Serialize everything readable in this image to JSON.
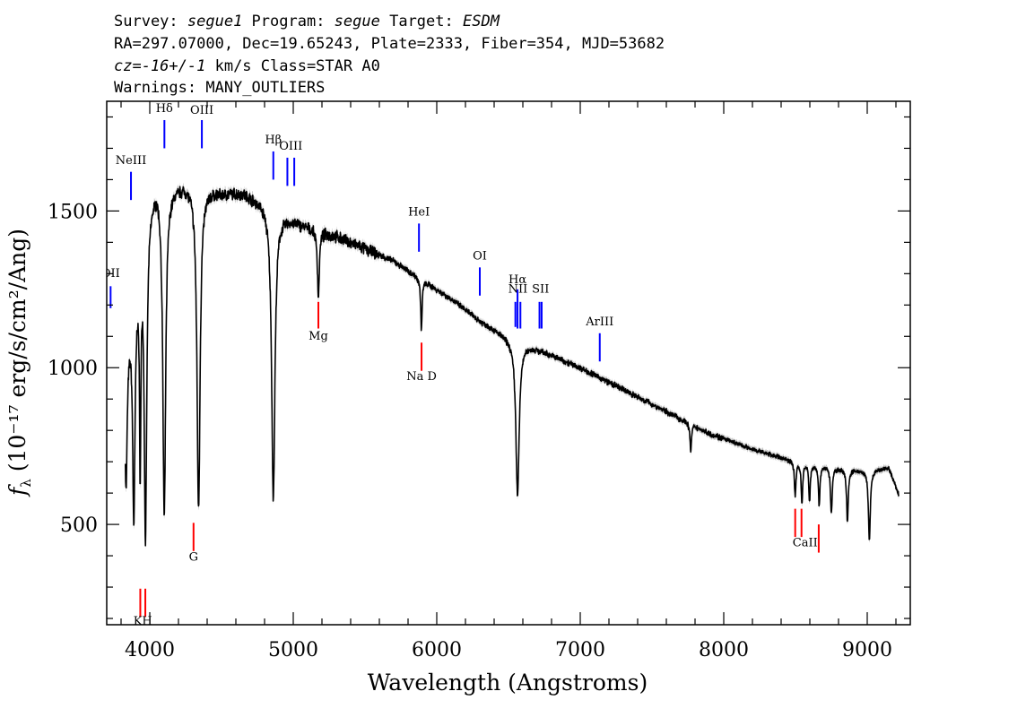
{
  "header": {
    "line1": [
      {
        "text": "Survey: ",
        "italic": false
      },
      {
        "text": "segue1",
        "italic": true
      },
      {
        "text": " Program: ",
        "italic": false
      },
      {
        "text": "segue",
        "italic": true
      },
      {
        "text": " Target: ",
        "italic": false
      },
      {
        "text": "ESDM",
        "italic": true
      }
    ],
    "line2": "RA=297.07000, Dec=19.65243, Plate=2333, Fiber=354, MJD=53682",
    "line3": [
      {
        "text": "cz=-16+/-1",
        "italic": true
      },
      {
        "text": " km/s Class=STAR A0",
        "italic": false
      }
    ],
    "line4": "Warnings: MANY_OUTLIERS"
  },
  "chart_data": {
    "type": "line",
    "xlabel": "Wavelength (Angstroms)",
    "ylabel": "fλ (10⁻¹⁷ erg/s/cm²/Ang)",
    "xlim": [
      3700,
      9300
    ],
    "ylim": [
      180,
      1850
    ],
    "xticks": [
      4000,
      5000,
      6000,
      7000,
      8000,
      9000
    ],
    "yticks": [
      500,
      1000,
      1500
    ],
    "spectrum_color": "#000000",
    "error_color": "#b0b0b0",
    "emission_color": "#0000ff",
    "absorption_color": "#ff0000",
    "continuum": [
      [
        3830,
        1060
      ],
      [
        3900,
        1280
      ],
      [
        3960,
        1520
      ],
      [
        4050,
        1600
      ],
      [
        4150,
        1580
      ],
      [
        4250,
        1590
      ],
      [
        4350,
        1580
      ],
      [
        4500,
        1560
      ],
      [
        4650,
        1560
      ],
      [
        4800,
        1525
      ],
      [
        4950,
        1480
      ],
      [
        5100,
        1450
      ],
      [
        5300,
        1420
      ],
      [
        5500,
        1380
      ],
      [
        5700,
        1340
      ],
      [
        5900,
        1280
      ],
      [
        6100,
        1220
      ],
      [
        6300,
        1150
      ],
      [
        6500,
        1095
      ],
      [
        6700,
        1060
      ],
      [
        7000,
        1000
      ],
      [
        7300,
        930
      ],
      [
        7600,
        860
      ],
      [
        7900,
        790
      ],
      [
        8200,
        740
      ],
      [
        8500,
        700
      ],
      [
        8800,
        680
      ],
      [
        9000,
        670
      ],
      [
        9150,
        680
      ],
      [
        9220,
        595
      ]
    ],
    "absorption_features": [
      {
        "x": 3835,
        "depth": 430,
        "width": 9
      },
      {
        "x": 3889,
        "depth": 700,
        "width": 10
      },
      {
        "x": 3933,
        "depth": 650,
        "width": 6
      },
      {
        "x": 3970,
        "depth": 1050,
        "width": 11
      },
      {
        "x": 4101,
        "depth": 1060,
        "width": 12
      },
      {
        "x": 4340,
        "depth": 1030,
        "width": 13
      },
      {
        "x": 4861,
        "depth": 920,
        "width": 14
      },
      {
        "x": 5175,
        "depth": 210,
        "width": 8
      },
      {
        "x": 5893,
        "depth": 160,
        "width": 6
      },
      {
        "x": 6563,
        "depth": 490,
        "width": 14
      },
      {
        "x": 7770,
        "depth": 90,
        "width": 6
      },
      {
        "x": 8498,
        "depth": 110,
        "width": 6
      },
      {
        "x": 8545,
        "depth": 130,
        "width": 6
      },
      {
        "x": 8598,
        "depth": 120,
        "width": 6
      },
      {
        "x": 8665,
        "depth": 130,
        "width": 6
      },
      {
        "x": 8750,
        "depth": 150,
        "width": 7
      },
      {
        "x": 8862,
        "depth": 170,
        "width": 7
      },
      {
        "x": 9015,
        "depth": 220,
        "width": 8
      }
    ],
    "emission_lines": [
      {
        "label": "OII",
        "x": 3727,
        "y_bottom": 1190,
        "y_top": 1260,
        "label_y": 1290
      },
      {
        "label": "NeIII",
        "x": 3869,
        "y_bottom": 1535,
        "y_top": 1625,
        "label_y": 1650
      },
      {
        "label": "Hδ",
        "x": 4102,
        "y_bottom": 1700,
        "y_top": 1790,
        "label_y": 1815
      },
      {
        "label": "OIII",
        "x": 4363,
        "y_bottom": 1700,
        "y_top": 1790,
        "label_y": 1810
      },
      {
        "label": "Hβ",
        "x": 4861,
        "y_bottom": 1600,
        "y_top": 1690,
        "label_y": 1715
      },
      {
        "label": "OIII",
        "x": 4959,
        "y_bottom": 1580,
        "y_top": 1670,
        "label_y": 1695
      },
      {
        "label": "OIII",
        "x": 5007,
        "y_bottom": 1580,
        "y_top": 1670,
        "label_y": 1695
      },
      {
        "label": "HeI",
        "x": 5876,
        "y_bottom": 1370,
        "y_top": 1460,
        "label_y": 1485
      },
      {
        "label": "OI",
        "x": 6300,
        "y_bottom": 1230,
        "y_top": 1320,
        "label_y": 1345
      },
      {
        "label": "NII",
        "x": 6548,
        "y_bottom": 1130,
        "y_top": 1210,
        "label_y": 1240
      },
      {
        "label": "Hα",
        "x": 6563,
        "y_bottom": 1125,
        "y_top": 1250,
        "label_y": 1270
      },
      {
        "label": "NII",
        "x": 6583,
        "y_bottom": 1125,
        "y_top": 1210,
        "label_y": 1240
      },
      {
        "label": "SII",
        "x": 6716,
        "y_bottom": 1125,
        "y_top": 1210,
        "label_y": 1240
      },
      {
        "label": "SII",
        "x": 6731,
        "y_bottom": 1125,
        "y_top": 1210,
        "label_y": 1240
      },
      {
        "label": "ArIII",
        "x": 7136,
        "y_bottom": 1020,
        "y_top": 1110,
        "label_y": 1135
      }
    ],
    "absorption_lines": [
      {
        "label": "K",
        "x": 3934,
        "y_bottom": 205,
        "y_top": 295,
        "label_y": 180
      },
      {
        "label": "H",
        "x": 3969,
        "y_bottom": 205,
        "y_top": 295,
        "label_y": 180
      },
      {
        "label": "G",
        "x": 4305,
        "y_bottom": 415,
        "y_top": 505,
        "label_y": 385
      },
      {
        "label": "Mg",
        "x": 5175,
        "y_bottom": 1125,
        "y_top": 1210,
        "label_y": 1090
      },
      {
        "label": "Na D",
        "x": 5894,
        "y_bottom": 990,
        "y_top": 1080,
        "label_y": 960
      },
      {
        "label": "CaII",
        "x": 8498,
        "y_bottom": 460,
        "y_top": 550,
        "label_y": 430
      },
      {
        "label": "CaII",
        "x": 8542,
        "y_bottom": 460,
        "y_top": 550,
        "label_y": 430
      },
      {
        "label": "CaII",
        "x": 8662,
        "y_bottom": 410,
        "y_top": 500,
        "label_y": 430
      }
    ]
  }
}
